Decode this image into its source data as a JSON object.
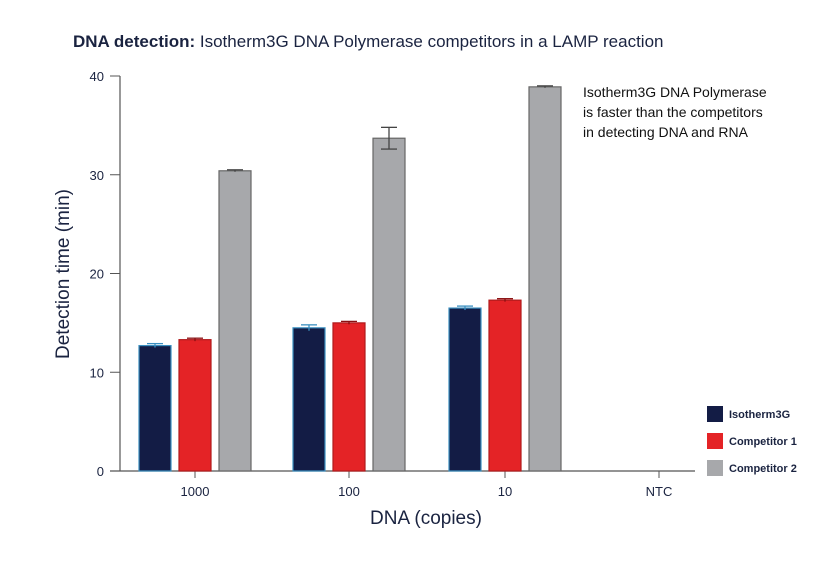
{
  "chart_data": {
    "type": "bar",
    "title_bold": "DNA detection:",
    "title_rest": " Isotherm3G DNA Polymerase competitors in a LAMP reaction",
    "xlabel": "DNA (copies)",
    "ylabel": "Detection time (min)",
    "ylim": [
      0,
      40
    ],
    "yticks": [
      0,
      10,
      20,
      30,
      40
    ],
    "categories": [
      "1000",
      "100",
      "10",
      "NTC"
    ],
    "series": [
      {
        "name": "Isotherm3G",
        "color": "#131c45",
        "values": [
          12.7,
          14.5,
          16.5,
          null
        ],
        "errors": [
          0.2,
          0.3,
          0.2,
          null
        ]
      },
      {
        "name": "Competitor 1",
        "color": "#e42326",
        "values": [
          13.3,
          15.0,
          17.3,
          null
        ],
        "errors": [
          0.15,
          0.15,
          0.15,
          null
        ]
      },
      {
        "name": "Competitor 2",
        "color": "#a7a8ab",
        "values": [
          30.4,
          33.7,
          38.9,
          null
        ],
        "errors": [
          0.1,
          1.1,
          0.1,
          null
        ]
      }
    ],
    "annotation": [
      "Isotherm3G DNA Polymerase",
      "is faster than the competitors",
      "in detecting DNA and RNA"
    ],
    "legend_position": "bottom-right",
    "grid": false
  }
}
